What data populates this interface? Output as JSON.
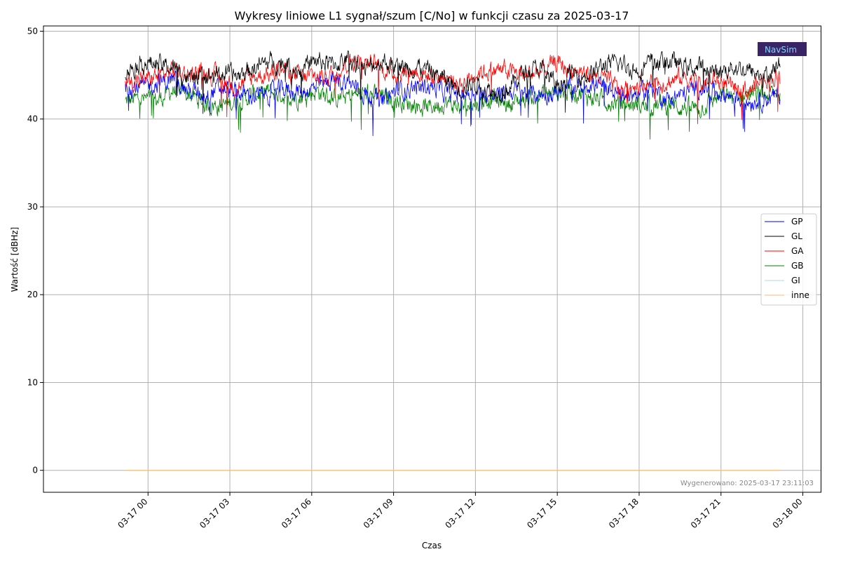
{
  "chart_data": {
    "type": "line",
    "title": "Wykresy liniowe L1 sygnał/szum [C/No] w funkcji czasu za 2025-03-17",
    "xlabel": "Czas",
    "ylabel": "Wartość [dBHz]",
    "xlim": [
      "2025-03-16 20:10",
      "2025-03-18 00:40"
    ],
    "ylim": [
      -2.5,
      50.6
    ],
    "x_range": [
      "2025-03-16 23:10",
      "2025-03-17 23:10"
    ],
    "x_ticks": [
      "03-17 00",
      "03-17 03",
      "03-17 06",
      "03-17 09",
      "03-17 12",
      "03-17 15",
      "03-17 18",
      "03-17 21",
      "03-18 00"
    ],
    "y_ticks": [
      0,
      10,
      20,
      30,
      40,
      50
    ],
    "grid": true,
    "legend_position": "right",
    "series": [
      {
        "name": "GP",
        "color": "#0000ff",
        "values": [
          43.8,
          43.6,
          44.1,
          44.5,
          43.2,
          42.8,
          43.5,
          43.0,
          42.6,
          42.9,
          43.4,
          43.1,
          43.6,
          44.4,
          44.2,
          42.8,
          41.9,
          43.3,
          43.5,
          43.8,
          43.0,
          42.9,
          43.2,
          42.5,
          43.2,
          43.1,
          42.7,
          43.0,
          43.6,
          44.0,
          43.8,
          42.6,
          42.9,
          43.4,
          42.2,
          42.9,
          43.7,
          43.1,
          42.6,
          42.0,
          42.3,
          42.6
        ]
      },
      {
        "name": "GL",
        "color": "#000000",
        "values": [
          45.5,
          46.5,
          46.2,
          45.8,
          44.6,
          44.8,
          45.2,
          44.9,
          45.8,
          46.5,
          46.3,
          45.5,
          46.7,
          46.2,
          46.8,
          45.6,
          46.7,
          45.9,
          46.0,
          45.6,
          44.5,
          43.5,
          44.2,
          43.0,
          43.5,
          45.4,
          45.8,
          43.8,
          45.2,
          44.9,
          46.2,
          46.3,
          45.5,
          46.5,
          46.6,
          46.0,
          45.8,
          45.2,
          46.0,
          45.5,
          44.8,
          46.2
        ]
      },
      {
        "name": "GA",
        "color": "#ff0000",
        "values": [
          44.2,
          44.5,
          44.9,
          45.6,
          45.1,
          45.3,
          44.6,
          43.6,
          44.8,
          45.2,
          45.6,
          44.8,
          44.9,
          45.1,
          46.5,
          46.6,
          45.8,
          45.2,
          45.5,
          44.9,
          44.8,
          44.0,
          45.3,
          45.6,
          45.5,
          45.0,
          45.4,
          46.4,
          45.5,
          45.2,
          44.6,
          43.2,
          44.0,
          44.1,
          44.2,
          44.8,
          44.0,
          44.4,
          43.6,
          43.2,
          44.5,
          44.8
        ]
      },
      {
        "name": "GB",
        "color": "#008000",
        "values": [
          42.0,
          42.3,
          42.1,
          43.3,
          42.8,
          41.7,
          41.5,
          42.0,
          42.8,
          43.1,
          42.7,
          42.5,
          43.2,
          42.3,
          42.6,
          43.0,
          42.6,
          42.1,
          41.7,
          41.3,
          41.9,
          41.3,
          41.8,
          42.4,
          41.7,
          42.3,
          42.8,
          43.0,
          43.2,
          42.6,
          42.1,
          41.8,
          41.6,
          41.5,
          41.7,
          41.3,
          41.2,
          42.4,
          42.6,
          42.9,
          42.7,
          43.0
        ]
      },
      {
        "name": "GI",
        "color": "#add8e6",
        "values": [
          0,
          0
        ]
      },
      {
        "name": "inne",
        "color": "#ffbf80",
        "values": [
          0,
          0
        ]
      }
    ]
  },
  "footer": "Wygenerowano: 2025-03-17 23:11:03",
  "logo": {
    "text": "NavSim"
  }
}
